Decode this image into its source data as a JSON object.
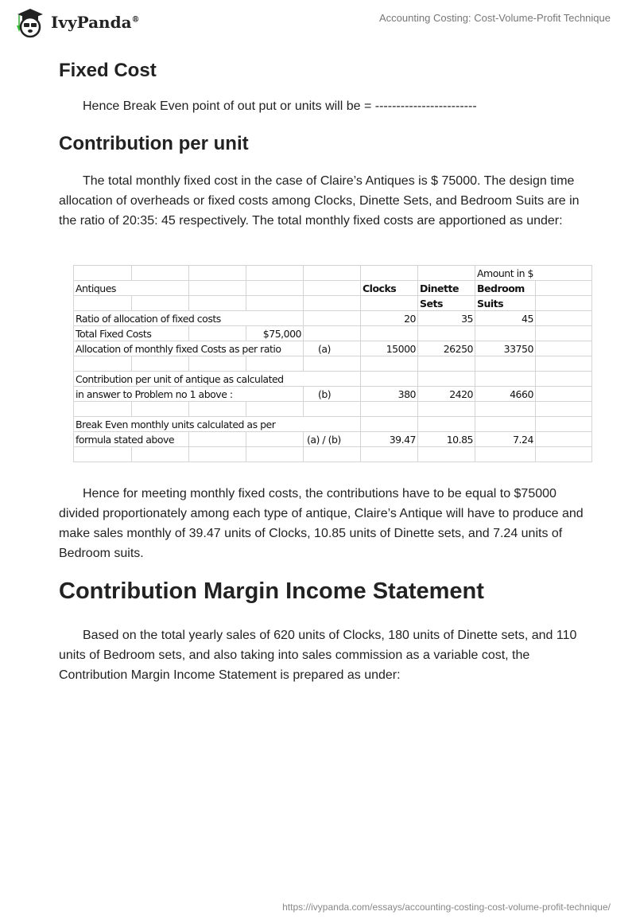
{
  "header": {
    "logo_text": "IvyPanda",
    "logo_mark": "®",
    "doc_title": "Accounting Costing: Cost-Volume-Profit Technique"
  },
  "sections": {
    "fixed_cost": {
      "heading": "Fixed Cost",
      "text": "Hence Break Even point of out put or units will be = ------------------------"
    },
    "contribution": {
      "heading": "Contribution per unit",
      "text": "The total monthly fixed cost in the case of Claire’s Antiques is $ 75000. The design time allocation of overheads or fixed costs among Clocks, Dinette Sets, and Bedroom Suits are in the ratio of 20:35: 45 respectively. The total monthly fixed costs are apportioned as under:"
    },
    "after_table": "Hence for meeting monthly fixed costs, the contributions have to be equal to $75000 divided proportionately among each type of antique, Claire’s Antique will have to produce and make sales monthly of 39.47 units of Clocks, 10.85 units of Dinette sets, and 7.24 units of Bedroom suits.",
    "cmis": {
      "heading": "Contribution Margin Income Statement",
      "text": "Based on the total yearly sales of 620 units of Clocks, 180 units of Dinette sets, and 110 units of Bedroom sets, and also taking into sales commission as a variable cost, the Contribution Margin Income Statement is prepared as under:"
    }
  },
  "table": {
    "amount_label": "Amount in $",
    "antiques": "Antiques",
    "headers": {
      "clocks": "Clocks",
      "dinette_1": "Dinette",
      "dinette_2": "Sets",
      "bedroom_1": "Bedroom",
      "bedroom_2": "Suits"
    },
    "ratio": {
      "label": "Ratio of allocation of fixed costs",
      "values": [
        "20",
        "35",
        "45"
      ]
    },
    "total": {
      "label": "Total Fixed Costs",
      "value": "$75,000"
    },
    "allocation": {
      "label": "Allocation of monthly fixed Costs as per ratio",
      "ref": "(a)",
      "values": [
        "15000",
        "26250",
        "33750"
      ]
    },
    "contribution": {
      "label_1": "Contribution per unit of antique as calculated",
      "label_2": "in answer to Problem no 1 above :",
      "ref": "(b)",
      "values": [
        "380",
        "2420",
        "4660"
      ]
    },
    "break_even": {
      "label_1": "Break Even monthly units calculated as per",
      "label_2": "formula stated above",
      "ref": "(a) / (b)",
      "values": [
        "39.47",
        "10.85",
        "7.24"
      ]
    }
  },
  "footer": {
    "url": "https://ivypanda.com/essays/accounting-costing-cost-volume-profit-technique/"
  }
}
